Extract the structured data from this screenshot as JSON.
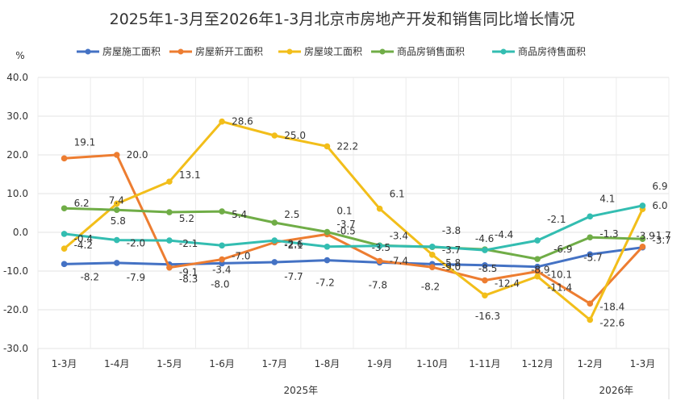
{
  "chart_data": {
    "type": "line",
    "title": "2025年1-3月至2026年1-3月北京市房地产开发和销售同比增长情况",
    "ylabel": "%",
    "xlabel": "",
    "ylim": [
      -30,
      40
    ],
    "yticks": [
      "40.0",
      "30.0",
      "20.0",
      "10.0",
      "0.0",
      "-10.0",
      "-20.0",
      "-30.0"
    ],
    "ytick_values": [
      40,
      30,
      20,
      10,
      0,
      -10,
      -20,
      -30
    ],
    "categories": [
      "1-3月",
      "1-4月",
      "1-5月",
      "1-6月",
      "1-7月",
      "1-8月",
      "1-9月",
      "1-10月",
      "1-11月",
      "1-12月",
      "1-2月",
      "1-3月"
    ],
    "year_groups": [
      {
        "label": "2025年",
        "start": 0,
        "end": 9
      },
      {
        "label": "2026年",
        "start": 10,
        "end": 11
      }
    ],
    "grid": true,
    "legend_position": "top",
    "series": [
      {
        "name": "房屋施工面积",
        "color": "#4472C4",
        "values": [
          -8.2,
          -7.9,
          -8.3,
          -8.0,
          -7.7,
          -7.2,
          -7.8,
          -8.2,
          -8.5,
          -8.9,
          -5.7,
          -3.9
        ],
        "labels": [
          "-8.2",
          "-7.9",
          "-8.3",
          "-8.0",
          "-7.7",
          "-7.2",
          "-7.8",
          "-8.2",
          "-8.5",
          "-8.9",
          "-5.7",
          "-3.9"
        ]
      },
      {
        "name": "房屋新开工面积",
        "color": "#ED7D31",
        "values": [
          19.1,
          20.0,
          -9.1,
          -7.0,
          -2.6,
          -0.5,
          -7.4,
          -9.0,
          -12.4,
          -10.1,
          -18.4,
          -3.7
        ],
        "labels": [
          "19.1",
          "20.0",
          "-9.1",
          "-7.0",
          "-2.6",
          "-0.5",
          "-7.4",
          "-9.0",
          "-12.4",
          "-10.1",
          "-18.4",
          "-3.7"
        ]
      },
      {
        "name": "房屋竣工面积",
        "color": "#F2BE1A",
        "values": [
          -4.2,
          7.4,
          13.1,
          28.6,
          25.0,
          22.2,
          6.1,
          -5.8,
          -16.3,
          -11.4,
          -22.6,
          6.0
        ],
        "labels": [
          "-4.2",
          "7.4",
          "13.1",
          "28.6",
          "25.0",
          "22.2",
          "6.1",
          "-5.8",
          "-16.3",
          "-11.4",
          "-22.6",
          "6.0"
        ]
      },
      {
        "name": "商品房销售面积",
        "color": "#70AD47",
        "values": [
          6.2,
          5.8,
          5.2,
          5.4,
          2.5,
          0.1,
          -3.4,
          -3.8,
          -4.4,
          -6.9,
          -1.3,
          -1.7
        ],
        "labels": [
          "6.2",
          "5.8",
          "5.2",
          "5.4",
          "2.5",
          "0.1",
          "-3.4",
          "-3.8",
          "-4.4",
          "-6.9",
          "-1.3",
          "-1.7"
        ]
      },
      {
        "name": "商品房待售面积",
        "color": "#33BDB1",
        "values": [
          -0.4,
          -2.0,
          -2.1,
          -3.4,
          -2.1,
          -3.7,
          -3.5,
          -3.7,
          -4.6,
          -2.1,
          4.1,
          6.9
        ],
        "labels": [
          "-0.4",
          "-2.0",
          "-2.1",
          "-3.4",
          "-2.1",
          "-3.7",
          "-3.5",
          "-3.7",
          "-4.6",
          "-2.1",
          "4.1",
          "6.9"
        ]
      }
    ]
  }
}
